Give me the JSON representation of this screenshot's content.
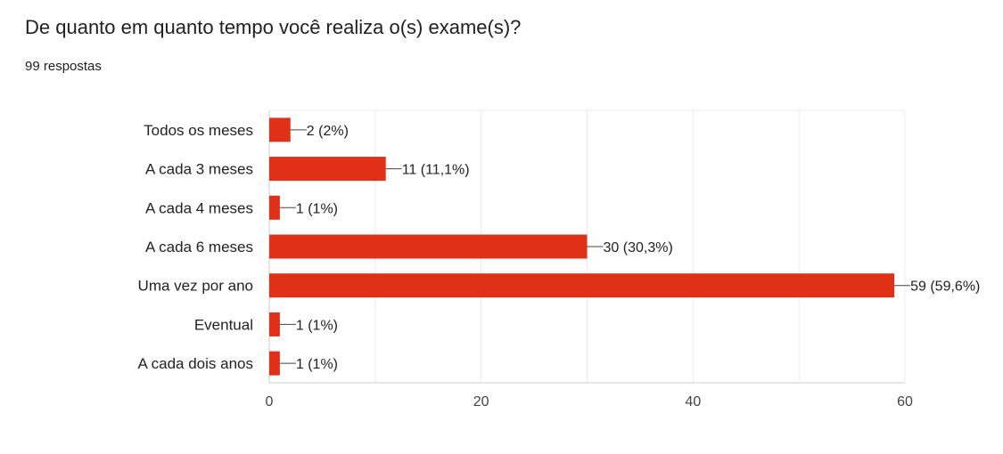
{
  "header": {
    "title": "De quanto em quanto tempo você realiza o(s) exame(s)?",
    "responses": "99 respostas"
  },
  "colors": {
    "bar": "#e03118",
    "grid": "#ebebeb",
    "axis": "#cccccc",
    "leader": "#444444"
  },
  "chart_data": {
    "type": "bar",
    "orientation": "horizontal",
    "categories": [
      "Todos os meses",
      "A cada 3 meses",
      "A cada 4 meses",
      "A cada 6 meses",
      "Uma vez por ano",
      "Eventual",
      "A cada dois anos"
    ],
    "values": [
      2,
      11,
      1,
      30,
      59,
      1,
      1
    ],
    "data_labels": [
      "2 (2%)",
      "11 (11,1%)",
      "1 (1%)",
      "30 (30,3%)",
      "59 (59,6%)",
      "1 (1%)",
      "1 (1%)"
    ],
    "xticks": [
      "0",
      "20",
      "40",
      "60"
    ],
    "xlim": [
      0,
      60
    ],
    "grid": true,
    "legend": "none"
  }
}
